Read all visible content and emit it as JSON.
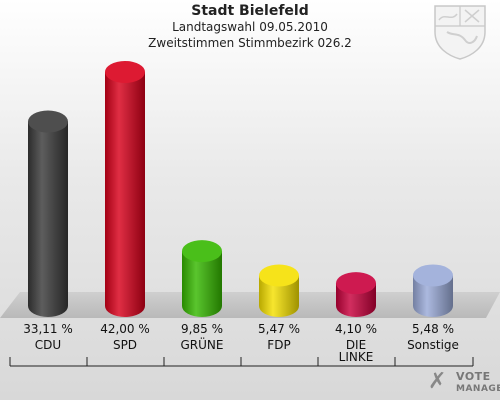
{
  "chart_data": {
    "type": "bar",
    "title": "Stadt Bielefeld",
    "subtitle": "Landtagswahl 09.05.2010",
    "subtitle2": "Zweitstimmen Stimmbezirk 026.2",
    "categories": [
      "CDU",
      "SPD",
      "GRÜNE",
      "FDP",
      "DIE LINKE",
      "Sonstige"
    ],
    "category_lines": [
      [
        "CDU"
      ],
      [
        "SPD"
      ],
      [
        "GRÜNE"
      ],
      [
        "FDP"
      ],
      [
        "DIE",
        "LINKE"
      ],
      [
        "Sonstige"
      ]
    ],
    "values": [
      33.11,
      42.0,
      9.85,
      5.47,
      4.1,
      5.48
    ],
    "value_labels": [
      "33,11 %",
      "42,00 %",
      "9,85 %",
      "5,47 %",
      "4,10 %",
      "5,48 %"
    ],
    "colors": [
      "#3a3a3a",
      "#d9001b",
      "#36b800",
      "#f5e000",
      "#c8003c",
      "#9aaad8"
    ],
    "ylim": [
      0,
      42.0
    ],
    "grid": false,
    "legend": "none"
  },
  "branding": {
    "crest_icon": "nrw-crest-icon",
    "logo_icon": "checkmark-cross-icon",
    "logo_line1": "VOTE",
    "logo_line2": "MANAGER"
  }
}
